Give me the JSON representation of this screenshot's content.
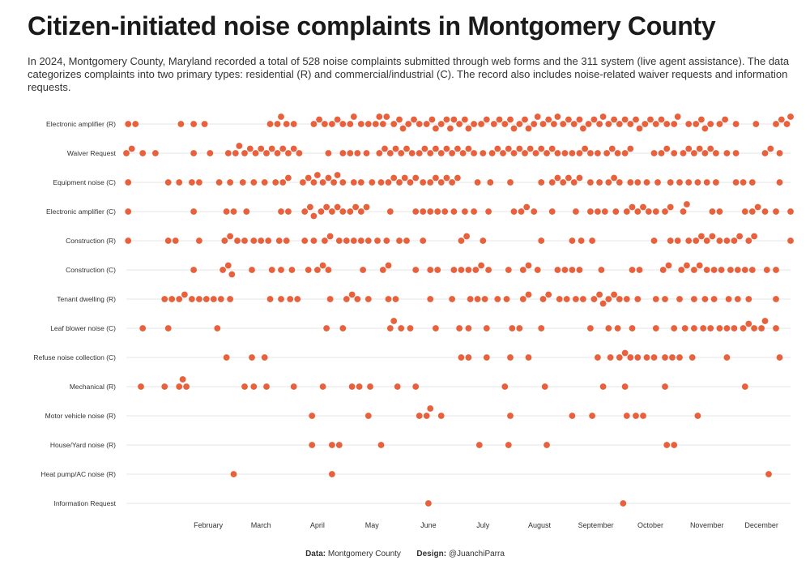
{
  "title": "Citizen-initiated noise complaints in Montgomery County",
  "subtitle": "In 2024, Montgomery County, Maryland recorded a total of 528 noise complaints submitted through web forms and the 311 system (live agent assistance). The data categorizes complaints into two primary types: residential (R) and commercial/industrial (C). The record also includes noise-related waiver requests and information requests.",
  "caption": {
    "data_label": "Data:",
    "data_value": "Montgomery County",
    "design_label": "Design:",
    "design_value": "@JuanchiParra"
  },
  "colors": {
    "dot": "#e8603c",
    "grid": "#e6e6e6"
  },
  "chart_data": {
    "type": "scatter",
    "x_unit": "day of year 2024",
    "x_range": [
      1,
      366
    ],
    "x_ticks": [
      {
        "label": "February",
        "day": 46
      },
      {
        "label": "March",
        "day": 75
      },
      {
        "label": "April",
        "day": 106
      },
      {
        "label": "May",
        "day": 136
      },
      {
        "label": "June",
        "day": 167
      },
      {
        "label": "July",
        "day": 197
      },
      {
        "label": "August",
        "day": 228
      },
      {
        "label": "September",
        "day": 259
      },
      {
        "label": "October",
        "day": 289
      },
      {
        "label": "November",
        "day": 320
      },
      {
        "label": "December",
        "day": 350
      }
    ],
    "categories": [
      "Electronic amplifier (R)",
      "Waiver Request",
      "Equipment noise (C)",
      "Electronic amplifier (C)",
      "Construction (R)",
      "Construction (C)",
      "Tenant dwelling (R)",
      "Leaf blower noise (C)",
      "Refuse noise collection (C)",
      "Mechanical (R)",
      "Motor vehicle noise (R)",
      "House/Yard noise (R)",
      "Heat pump/AC noise (R)",
      "Information Request"
    ],
    "series": [
      {
        "category": "Electronic amplifier (R)",
        "days": [
          2,
          6,
          31,
          38,
          44,
          80,
          84,
          86,
          89,
          93,
          104,
          107,
          110,
          114,
          117,
          120,
          124,
          126,
          130,
          134,
          138,
          140,
          142,
          144,
          148,
          151,
          153,
          156,
          159,
          162,
          166,
          169,
          171,
          174,
          177,
          179,
          181,
          184,
          187,
          189,
          192,
          196,
          199,
          203,
          206,
          209,
          212,
          214,
          217,
          220,
          222,
          225,
          227,
          230,
          233,
          236,
          238,
          241,
          244,
          247,
          250,
          252,
          255,
          258,
          261,
          263,
          266,
          269,
          272,
          275,
          278,
          281,
          283,
          286,
          289,
          292,
          295,
          298,
          302,
          304,
          310,
          314,
          317,
          319,
          322,
          327,
          330,
          336,
          347,
          358,
          361,
          364,
          366
        ]
      },
      {
        "category": "Waiver Request",
        "days": [
          1,
          4,
          10,
          17,
          38,
          47,
          57,
          61,
          63,
          66,
          69,
          72,
          75,
          78,
          81,
          84,
          87,
          90,
          93,
          96,
          112,
          120,
          124,
          128,
          133,
          140,
          143,
          146,
          149,
          152,
          155,
          158,
          162,
          165,
          168,
          171,
          174,
          177,
          180,
          183,
          186,
          189,
          192,
          197,
          202,
          205,
          208,
          211,
          214,
          217,
          220,
          223,
          226,
          229,
          232,
          235,
          238,
          242,
          246,
          250,
          253,
          256,
          260,
          265,
          268,
          271,
          275,
          278,
          291,
          295,
          298,
          302,
          307,
          310,
          313,
          316,
          319,
          322,
          325,
          331,
          336,
          352,
          355,
          360
        ]
      },
      {
        "category": "Equipment noise (C)",
        "days": [
          2,
          24,
          30,
          37,
          41,
          52,
          58,
          65,
          71,
          77,
          83,
          87,
          90,
          98,
          101,
          104,
          106,
          109,
          112,
          115,
          117,
          120,
          126,
          130,
          136,
          141,
          145,
          148,
          151,
          154,
          157,
          160,
          164,
          168,
          171,
          174,
          177,
          180,
          183,
          194,
          201,
          212,
          229,
          235,
          238,
          241,
          244,
          247,
          250,
          256,
          261,
          266,
          269,
          272,
          278,
          282,
          287,
          293,
          300,
          305,
          310,
          315,
          320,
          325,
          336,
          340,
          345,
          360
        ]
      },
      {
        "category": "Electronic amplifier (C)",
        "days": [
          2,
          38,
          56,
          60,
          67,
          86,
          90,
          99,
          102,
          104,
          108,
          111,
          114,
          117,
          120,
          124,
          127,
          130,
          133,
          146,
          160,
          164,
          168,
          172,
          176,
          181,
          187,
          192,
          200,
          214,
          218,
          221,
          225,
          235,
          248,
          256,
          260,
          264,
          270,
          276,
          279,
          282,
          285,
          288,
          292,
          297,
          300,
          307,
          309,
          323,
          327,
          341,
          345,
          348,
          352,
          358,
          366
        ]
      },
      {
        "category": "Construction (R)",
        "days": [
          2,
          24,
          28,
          41,
          55,
          58,
          62,
          66,
          71,
          75,
          79,
          85,
          89,
          99,
          104,
          110,
          113,
          118,
          122,
          126,
          130,
          134,
          139,
          144,
          151,
          155,
          164,
          185,
          188,
          197,
          229,
          246,
          251,
          257,
          291,
          300,
          304,
          310,
          314,
          317,
          320,
          323,
          327,
          331,
          335,
          338,
          343,
          346,
          366
        ]
      },
      {
        "category": "Construction (C)",
        "days": [
          38,
          54,
          57,
          59,
          70,
          81,
          86,
          92,
          101,
          106,
          109,
          112,
          131,
          142,
          145,
          160,
          168,
          172,
          181,
          185,
          189,
          193,
          196,
          200,
          211,
          219,
          222,
          227,
          238,
          242,
          246,
          250,
          262,
          279,
          283,
          296,
          299,
          306,
          309,
          313,
          316,
          320,
          324,
          328,
          333,
          337,
          341,
          345,
          353,
          358
        ]
      },
      {
        "category": "Tenant dwelling (R)",
        "days": [
          22,
          26,
          30,
          33,
          37,
          41,
          45,
          49,
          53,
          58,
          80,
          86,
          91,
          95,
          113,
          122,
          125,
          128,
          134,
          145,
          149,
          168,
          180,
          190,
          194,
          198,
          205,
          210,
          219,
          222,
          230,
          233,
          239,
          243,
          248,
          252,
          258,
          261,
          263,
          266,
          269,
          272,
          276,
          282,
          292,
          297,
          305,
          313,
          319,
          324,
          332,
          337,
          343,
          358
        ]
      },
      {
        "category": "Leaf blower noise (C)",
        "days": [
          10,
          24,
          51,
          111,
          120,
          146,
          148,
          152,
          157,
          171,
          184,
          189,
          199,
          213,
          217,
          229,
          256,
          266,
          271,
          279,
          292,
          302,
          308,
          313,
          318,
          322,
          327,
          331,
          335,
          340,
          343,
          346,
          350,
          352,
          358
        ]
      },
      {
        "category": "Refuse noise collection (C)",
        "days": [
          56,
          70,
          77,
          185,
          189,
          199,
          212,
          222,
          260,
          267,
          272,
          275,
          278,
          282,
          287,
          291,
          297,
          301,
          305,
          312,
          331,
          360
        ]
      },
      {
        "category": "Mechanical (R)",
        "days": [
          9,
          22,
          30,
          32,
          34,
          66,
          71,
          78,
          93,
          109,
          125,
          129,
          135,
          150,
          160,
          209,
          231,
          263,
          275,
          297,
          341
        ]
      },
      {
        "category": "Motor vehicle noise (R)",
        "days": [
          103,
          134,
          162,
          166,
          168,
          174,
          212,
          246,
          257,
          276,
          281,
          285,
          315
        ]
      },
      {
        "category": "House/Yard noise (R)",
        "days": [
          103,
          114,
          118,
          141,
          195,
          211,
          232,
          298,
          302
        ]
      },
      {
        "category": "Heat pump/AC noise (R)",
        "days": [
          60,
          114,
          354
        ]
      },
      {
        "category": "Information Request",
        "days": [
          167,
          274
        ]
      }
    ]
  }
}
